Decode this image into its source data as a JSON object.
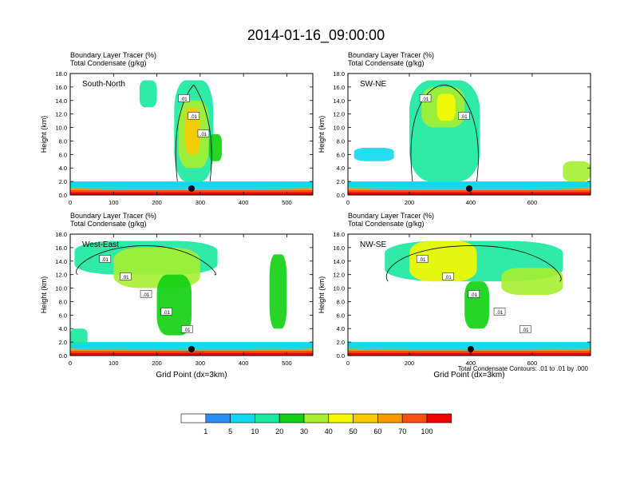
{
  "title": "2014-01-16_09:00:00",
  "colors": {
    "levels": [
      "#ffffff",
      "#2a8cf5",
      "#10d8f0",
      "#18e8a0",
      "#10d010",
      "#a6ef30",
      "#f8f800",
      "#f8c800",
      "#f89800",
      "#f85010",
      "#f00000"
    ],
    "contour": "#000000",
    "marker": "#000000"
  },
  "colorbar": {
    "labels": [
      "1",
      "5",
      "10",
      "20",
      "30",
      "40",
      "50",
      "60",
      "70",
      "100"
    ]
  },
  "footnote": "Total Condensate Contours: .01 to .01 by .000",
  "chart_data": [
    {
      "type": "contour",
      "name": "south-north",
      "label": "South-North",
      "header1": "Boundary Layer Tracer   (%)",
      "header2": "Total Condensate   (g/kg)",
      "ylabel": "Height (km)",
      "xlabel": "",
      "xlim": [
        0,
        560
      ],
      "ylim": [
        0,
        18
      ],
      "xticks": [
        "0",
        "100",
        "200",
        "300",
        "400",
        "500"
      ],
      "yticks": [
        "0.0",
        "2.0",
        "4.0",
        "6.0",
        "8.0",
        "10.0",
        "12.0",
        "14.0",
        "16.0",
        "18.0"
      ],
      "marker_x": 280,
      "contour_labels": [
        ".01",
        ".01",
        ".01"
      ],
      "blobs": [
        {
          "x": [
            240,
            330
          ],
          "y": [
            2,
            17
          ],
          "level": 3
        },
        {
          "x": [
            250,
            320
          ],
          "y": [
            4,
            14
          ],
          "level": 5
        },
        {
          "x": [
            265,
            300
          ],
          "y": [
            6,
            13
          ],
          "level": 7
        },
        {
          "x": [
            160,
            200
          ],
          "y": [
            13,
            17
          ],
          "level": 3
        },
        {
          "x": [
            320,
            350
          ],
          "y": [
            5,
            9
          ],
          "level": 4
        },
        {
          "x": [
            0,
            560
          ],
          "y": [
            0.8,
            1.8
          ],
          "level": 2
        }
      ]
    },
    {
      "type": "contour",
      "name": "sw-ne",
      "label": "SW-NE",
      "header1": "Boundary Layer Tracer   (%)",
      "header2": "Total Condensate   (g/kg)",
      "ylabel": "Height (km)",
      "xlabel": "",
      "xlim": [
        0,
        790
      ],
      "ylim": [
        0,
        18
      ],
      "xticks": [
        "0",
        "200",
        "400",
        "600"
      ],
      "yticks": [
        "0.0",
        "2.0",
        "4.0",
        "6.0",
        "8.0",
        "10.0",
        "12.0",
        "14.0",
        "16.0",
        "18.0"
      ],
      "marker_x": 395,
      "contour_labels": [
        ".01",
        ".01"
      ],
      "blobs": [
        {
          "x": [
            200,
            430
          ],
          "y": [
            2,
            17
          ],
          "level": 3
        },
        {
          "x": [
            240,
            380
          ],
          "y": [
            10,
            16
          ],
          "level": 5
        },
        {
          "x": [
            290,
            350
          ],
          "y": [
            11,
            15
          ],
          "level": 6
        },
        {
          "x": [
            20,
            150
          ],
          "y": [
            5,
            7
          ],
          "level": 2
        },
        {
          "x": [
            700,
            790
          ],
          "y": [
            2,
            5
          ],
          "level": 5
        },
        {
          "x": [
            0,
            790
          ],
          "y": [
            0.8,
            1.8
          ],
          "level": 2
        }
      ]
    },
    {
      "type": "contour",
      "name": "west-east",
      "label": "West-East",
      "header1": "Boundary Layer Tracer   (%)",
      "header2": "Total Condensate   (g/kg)",
      "ylabel": "Height (km)",
      "xlabel": "Grid Point (dx=3km)",
      "xlim": [
        0,
        560
      ],
      "ylim": [
        0,
        18
      ],
      "xticks": [
        "0",
        "100",
        "200",
        "300",
        "400",
        "500"
      ],
      "yticks": [
        "0.0",
        "2.0",
        "4.0",
        "6.0",
        "8.0",
        "10.0",
        "12.0",
        "14.0",
        "16.0",
        "18.0"
      ],
      "marker_x": 280,
      "contour_labels": [
        ".01",
        ".01",
        ".01",
        ".01",
        ".01"
      ],
      "blobs": [
        {
          "x": [
            10,
            340
          ],
          "y": [
            12,
            17
          ],
          "level": 3
        },
        {
          "x": [
            100,
            300
          ],
          "y": [
            10,
            16
          ],
          "level": 5
        },
        {
          "x": [
            200,
            280
          ],
          "y": [
            3,
            12
          ],
          "level": 4
        },
        {
          "x": [
            460,
            500
          ],
          "y": [
            4,
            15
          ],
          "level": 4
        },
        {
          "x": [
            0,
            40
          ],
          "y": [
            1.5,
            4
          ],
          "level": 3
        },
        {
          "x": [
            0,
            560
          ],
          "y": [
            0.8,
            1.8
          ],
          "level": 2
        }
      ]
    },
    {
      "type": "contour",
      "name": "nw-se",
      "label": "NW-SE",
      "header1": "Boundary Layer Tracer   (%)",
      "header2": "Total Condensate   (g/kg)",
      "ylabel": "Height (km)",
      "xlabel": "Grid Point (dx=3km)",
      "xlim": [
        0,
        790
      ],
      "ylim": [
        0,
        18
      ],
      "xticks": [
        "0",
        "200",
        "400",
        "600"
      ],
      "yticks": [
        "0.0",
        "2.0",
        "4.0",
        "6.0",
        "8.0",
        "10.0",
        "12.0",
        "14.0",
        "16.0",
        "18.0"
      ],
      "marker_x": 400,
      "contour_labels": [
        ".01",
        ".01",
        ".01",
        ".01",
        ".01"
      ],
      "blobs": [
        {
          "x": [
            120,
            700
          ],
          "y": [
            11,
            17
          ],
          "level": 3
        },
        {
          "x": [
            200,
            420
          ],
          "y": [
            11,
            17
          ],
          "level": 6
        },
        {
          "x": [
            380,
            460
          ],
          "y": [
            4,
            11
          ],
          "level": 4
        },
        {
          "x": [
            500,
            700
          ],
          "y": [
            9,
            13
          ],
          "level": 5
        },
        {
          "x": [
            0,
            790
          ],
          "y": [
            0.8,
            1.8
          ],
          "level": 2
        }
      ]
    }
  ]
}
